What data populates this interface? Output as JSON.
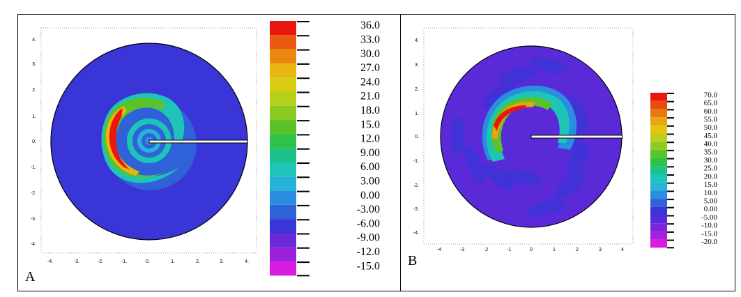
{
  "panels": [
    {
      "label": "A",
      "x_ticks": [
        "-4.",
        "-3.",
        "-2.",
        "-1.",
        "0.",
        "1.",
        "2.",
        "3.",
        "4."
      ],
      "y_ticks": [
        "4.",
        "3.",
        "2.",
        "1.",
        "0.",
        "-1.",
        "-2.",
        "-3.",
        "-4."
      ],
      "colorbar_labels": [
        "36.0",
        "33.0",
        "30.0",
        "27.0",
        "24.0",
        "21.0",
        "18.0",
        "15.0",
        "12.0",
        "9.00",
        "6.00",
        "3.00",
        "0.00",
        "-3.00",
        "-6.00",
        "-9.00",
        "-12.0",
        "-15.0"
      ],
      "colors": [
        "#e8170f",
        "#ea5a0e",
        "#e9870e",
        "#e9b510",
        "#d8cd12",
        "#b5d01a",
        "#8ccc22",
        "#5cc22a",
        "#2ec24a",
        "#1fc08a",
        "#1ec4b8",
        "#25b3d8",
        "#2a8ee0",
        "#2f62d8",
        "#3a35d6",
        "#6a2ad8",
        "#9a20dc",
        "#d71ce0"
      ]
    },
    {
      "label": "B",
      "x_ticks": [
        "-4",
        "-3",
        "-2",
        "-1",
        "0",
        "1",
        "2",
        "3",
        "4"
      ],
      "y_ticks": [
        "4.",
        "3.",
        "2.",
        "1.",
        "0.",
        "-1.",
        "-2.",
        "-3.",
        "-4."
      ],
      "colorbar_labels": [
        "70.0",
        "65.0",
        "60.0",
        "55.0",
        "50.0",
        "45.0",
        "40.0",
        "35.0",
        "30.0",
        "25.0",
        "20.0",
        "15.0",
        "10.0",
        "5.00",
        "0.00",
        "-5.00",
        "-10.0",
        "-15.0",
        "-20.0"
      ],
      "colors": [
        "#e8170f",
        "#ea4a0e",
        "#e9780e",
        "#e9a410",
        "#e3c412",
        "#bccf18",
        "#8ccc22",
        "#5cc22a",
        "#2ec24a",
        "#1fc08a",
        "#1ec4b8",
        "#25b3d8",
        "#2a8ee0",
        "#2f62d8",
        "#3a35d6",
        "#5a2ad8",
        "#7e24da",
        "#a820dc",
        "#d71ce0"
      ]
    }
  ],
  "chart_data": [
    {
      "type": "heatmap",
      "panel": "A",
      "x_ticks": [
        -4,
        -3,
        -2,
        -1,
        0,
        1,
        2,
        3,
        4
      ],
      "y_ticks": [
        4,
        3,
        2,
        1,
        0,
        -1,
        -2,
        -3,
        -4
      ],
      "xlim": [
        -4,
        4
      ],
      "ylim": [
        -4,
        4
      ],
      "colorbar": [
        36,
        33,
        30,
        27,
        24,
        21,
        18,
        15,
        12,
        9,
        6,
        3,
        0,
        -3,
        -6,
        -9,
        -12,
        -15
      ],
      "domain_radius": 4,
      "features": {
        "spiral_band_peak_value": 36,
        "spiral_band_peak_location": [
          -1.5,
          -0.3
        ],
        "background_value": -3,
        "line_segment": {
          "x": [
            0,
            4
          ],
          "y": [
            0,
            0
          ]
        }
      }
    },
    {
      "type": "heatmap",
      "panel": "B",
      "x_ticks": [
        -4,
        -3,
        -2,
        -1,
        0,
        1,
        2,
        3,
        4
      ],
      "y_ticks": [
        4,
        3,
        2,
        1,
        0,
        -1,
        -2,
        -3,
        -4
      ],
      "xlim": [
        -4,
        4
      ],
      "ylim": [
        -4,
        4
      ],
      "colorbar": [
        70,
        65,
        60,
        55,
        50,
        45,
        40,
        35,
        30,
        25,
        20,
        15,
        10,
        5,
        0,
        -5,
        -10,
        -15,
        -20
      ],
      "domain_radius": 4,
      "features": {
        "arc_band_peak_value": 70,
        "arc_band_peak_location": [
          -1.4,
          1.0
        ],
        "background_value": -5,
        "line_segment": {
          "x": [
            0,
            4
          ],
          "y": [
            0,
            0
          ]
        }
      }
    }
  ]
}
